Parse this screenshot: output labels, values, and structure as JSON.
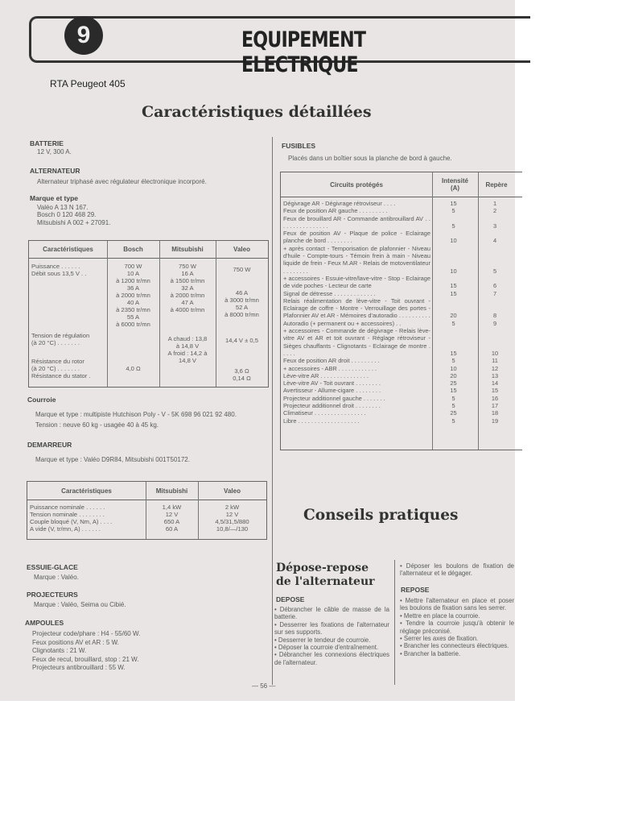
{
  "header": {
    "chapter": "9",
    "title": "EQUIPEMENT ELECTRIQUE",
    "source": "RTA  Peugeot 405",
    "section_title": "Caractéristiques détaillées"
  },
  "batterie": {
    "title": "BATTERIE",
    "text": "12 V, 300 A."
  },
  "alternateur": {
    "title": "ALTERNATEUR",
    "text": "Alternateur triphasé avec régulateur électronique incorporé.",
    "marque_title": "Marque et type",
    "marques": "Valéo A 13 N 167.\nBosch 0 120 468 29.\nMitsubishi A 002 + 27091.",
    "table": {
      "headers": [
        "Caractéristiques",
        "Bosch",
        "Mitsubishi",
        "Valeo"
      ],
      "labels": {
        "a": "Puissance . . . . . .\nDébit sous 13,5 V . .",
        "b": "Tension de régulation\n(à 20 °C) . . . . . . .",
        "c": "Résistance du rotor\n(à 20 °C) . . . . . . .\nRésistance du stator ."
      },
      "bosch": {
        "a": "700 W\n10 A\nà 1200 tr/mn\n36 A\nà 2000 tr/mn\n40 A\nà 2350 tr/mn\n55 A\nà 6000 tr/mn",
        "c": "4,0 Ω"
      },
      "mitsubishi": {
        "a": "750 W\n16 A\nà 1500 tr/mn\n32 A\nà 2000 tr/mn\n47 A\nà 4000 tr/mn",
        "b": "A chaud : 13,8\nà 14,8 V\nA froid : 14,2 à\n14,8 V"
      },
      "valeo": {
        "a": "750 W",
        "a2": "46 A\nà 3000 tr/mn\n52 A\nà 8000 tr/mn",
        "b": "14,4 V ± 0,5",
        "c": "3,6 Ω\n0,14 Ω"
      }
    }
  },
  "courroie": {
    "title": "Courroie",
    "lines": [
      "Marque et type : multipiste Hutchison Poly - V - 5K 698 96 021 92 480.",
      "Tension : neuve 60 kg - usagée 40 à 45 kg."
    ]
  },
  "demarreur": {
    "title": "DEMARREUR",
    "text": "Marque et type : Valéo D9R84, Mitsubishi 001T50172.",
    "table": {
      "headers": [
        "Caractéristiques",
        "Mitsubishi",
        "Valeo"
      ],
      "labels": "Puissance nominale . . . . . .\nTension nominale . . . . . . . .\nCouple bloqué (V, Nm, A) . . . .\nA vide (V, tr/mn, A) . . . . . .",
      "mitsubishi": "1,4 kW\n12 V\n650 A\n60 A",
      "valeo": "2 kW\n12 V\n4,5/31,5/880\n10,8/—/130"
    }
  },
  "essuie_glace": {
    "title": "ESSUIE-GLACE",
    "text": "Marque : Valéo."
  },
  "projecteurs": {
    "title": "PROJECTEURS",
    "text": "Marque : Valéo, Seima ou Cibié."
  },
  "ampoules": {
    "title": "AMPOULES",
    "text": "Projecteur code/phare : H4 - 55/60 W.\nFeux positions AV et AR : 5 W.\nClignotants : 21 W.\nFeux de recul, brouillard, stop : 21 W.\nProjecteurs antibrouillard : 55 W."
  },
  "fusibles": {
    "title": "FUSIBLES",
    "text": "Placés dans un boîtier sous la planche de bord à gauche.",
    "headers": [
      "Circuits protégés",
      "Intensité\n(A)",
      "Repère"
    ],
    "rows": [
      {
        "c": "Dégivrage AR - Dégivrage rétroviseur . . . .",
        "i": "15",
        "r": "1"
      },
      {
        "c": "Feux de position AR gauche . . . . . . . . .",
        "i": "5",
        "r": "2"
      },
      {
        "c": "Feux de brouillard AR - Commande antibrouillard AV . . . . . . . . . . . . . . . .",
        "i": "5",
        "r": "3"
      },
      {
        "c": "Feux de position AV - Plaque de police - Eclairage planche de bord . . . . . . . .",
        "i": "10",
        "r": "4"
      },
      {
        "c": "+ après contact - Temporisation de plafonnier - Niveau d'huile - Compte-tours - Témoin frein à main - Niveau liquide de frein - Feux M.AR - Relais de motoventilateur . . . . . . . .",
        "i": "10",
        "r": "5"
      },
      {
        "c": "+ accessoires - Essuie-vitre/lave-vitre - Stop - Eclairage de vide poches - Lecteur de carte",
        "i": "15",
        "r": "6"
      },
      {
        "c": "Signal de détresse . . . . . . . . . . . . .",
        "i": "15",
        "r": "7"
      },
      {
        "c": "Relais réalimentation de lève-vitre - Toit ouvrant - Eclairage de coffre - Montre - Verrouillage des portes - Plafonnier AV et AR - Mémoires d'autoradio . . . . . . . . . .",
        "i": "20",
        "r": "8"
      },
      {
        "c": "Autoradio (+ permanent ou + accessoires) . .",
        "i": "5",
        "r": "9"
      },
      {
        "c": "+ accessoires - Commande de dégivrage - Relais lève-vitre AV et AR et toit ouvrant - Réglage rétroviseur - Sièges chauffants - Clignotants - Eclairage de montre . . . . .",
        "i": "15",
        "r": "10"
      },
      {
        "c": "Feux de position AR droit . . . . . . . . .",
        "i": "5",
        "r": "11"
      },
      {
        "c": "+ accessoires - ABR . . . . . . . . . . . .",
        "i": "10",
        "r": "12"
      },
      {
        "c": "Lève-vitre AR . . . . . . . . . . . . . . .",
        "i": "20",
        "r": "13"
      },
      {
        "c": "Lève-vitre AV - Toit ouvrant . . . . . . . .",
        "i": "25",
        "r": "14"
      },
      {
        "c": "Avertisseur - Allume-cigare . . . . . . . .",
        "i": "15",
        "r": "15"
      },
      {
        "c": "Projecteur additionnel gauche . . . . . . .",
        "i": "5",
        "r": "16"
      },
      {
        "c": "Projecteur additionnel droit . . . . . . . .",
        "i": "5",
        "r": "17"
      },
      {
        "c": "Climatiseur . . . . . . . . . . . . . . . .",
        "i": "25",
        "r": "18"
      },
      {
        "c": "Libre . . . . . . . . . . . . . . . . . . .",
        "i": "5",
        "r": "19"
      }
    ]
  },
  "conseils": {
    "title": "Conseils pratiques",
    "subtitle": "Dépose-repose\nde l'alternateur",
    "depose_title": "DEPOSE",
    "depose": [
      "• Débrancher le câble de masse de la batterie.",
      "• Desserrer les fixations de l'alternateur sur ses supports.",
      "• Desserrer le tendeur de courroie.",
      "• Déposer la courroie d'entraînement.",
      "• Débrancher les connexions électriques de l'alternateur.",
      "• Déposer les boulons de fixation de l'alternateur et le dégager."
    ],
    "repose_title": "REPOSE",
    "repose": [
      "• Mettre l'alternateur en place et poser les boulons de fixation sans les serrer.",
      "• Mettre en place la courroie.",
      "• Tendre la courroie jusqu'à obtenir le réglage préconisé.",
      "• Serrer les axes de fixation.",
      "• Brancher les connecteurs électriques.",
      "• Brancher la batterie."
    ]
  },
  "footer": {
    "page": "— 56 —"
  }
}
